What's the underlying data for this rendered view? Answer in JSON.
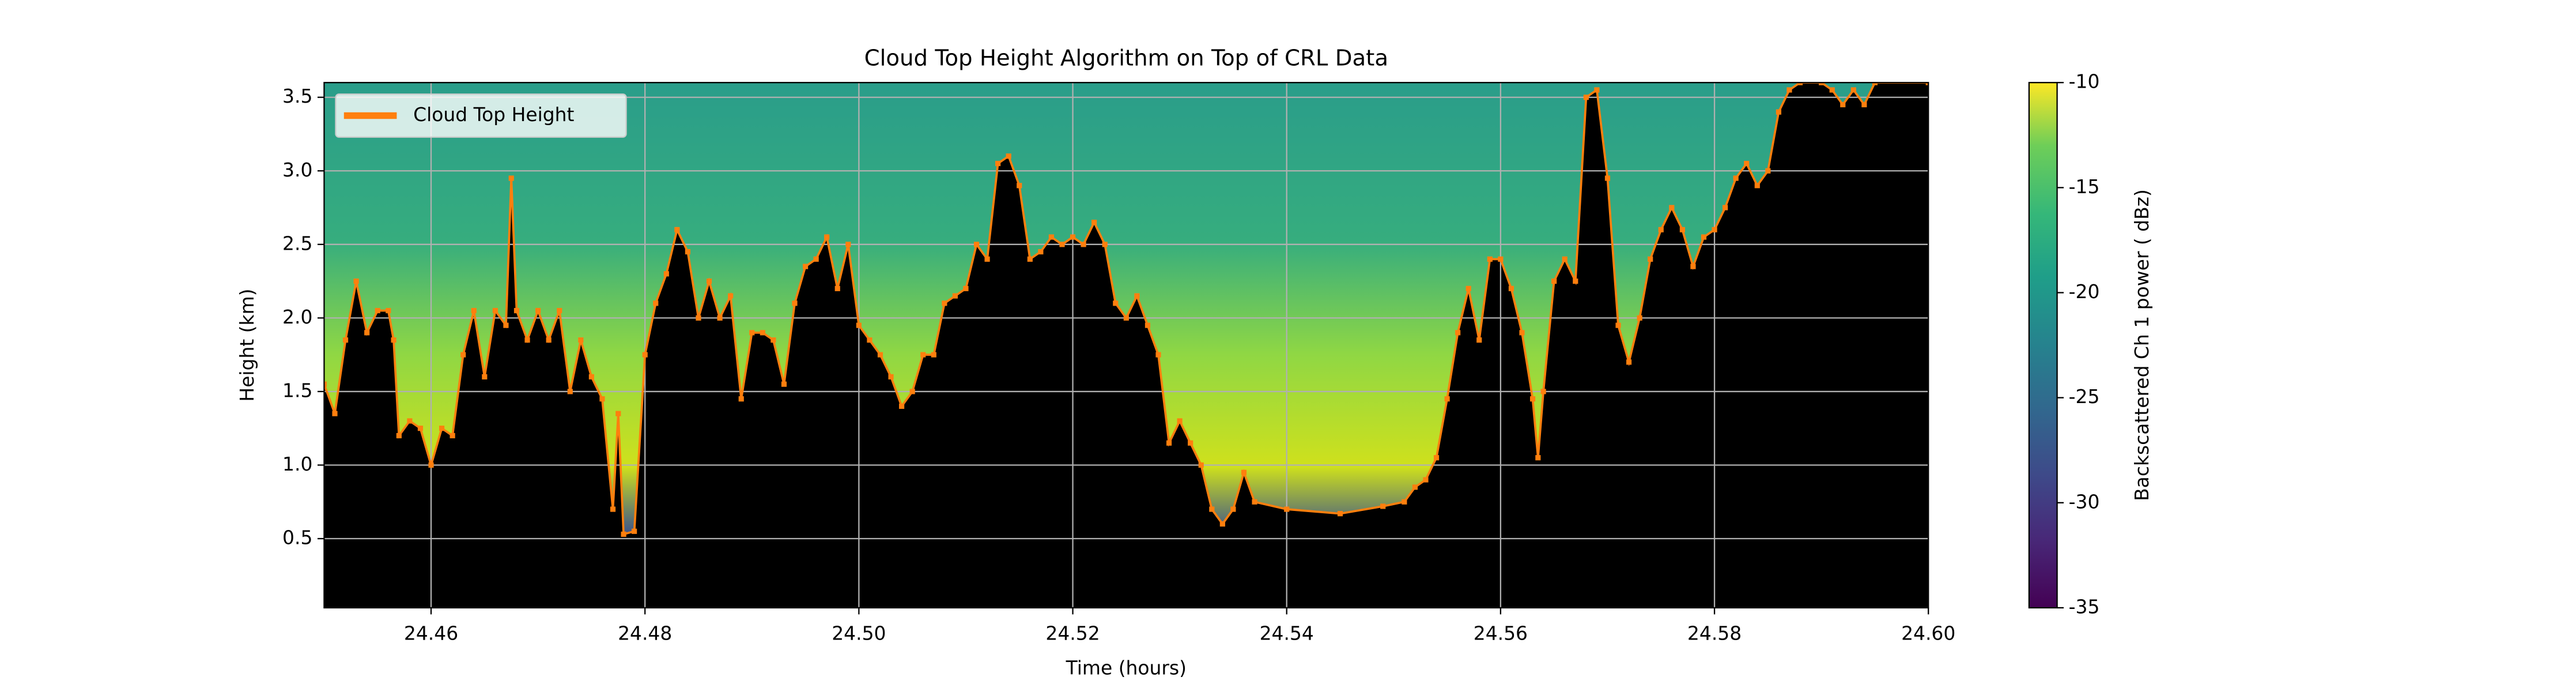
{
  "chart_data": {
    "type": "line",
    "title": "Cloud Top Height Algorithm on Top of CRL Data",
    "xlabel": "Time (hours)",
    "ylabel": "Height (km)",
    "x": [
      24.45,
      24.451,
      24.452,
      24.453,
      24.454,
      24.455,
      24.456,
      24.4565,
      24.457,
      24.458,
      24.459,
      24.46,
      24.461,
      24.462,
      24.463,
      24.464,
      24.465,
      24.466,
      24.467,
      24.4675,
      24.468,
      24.469,
      24.47,
      24.471,
      24.472,
      24.473,
      24.474,
      24.475,
      24.476,
      24.477,
      24.4775,
      24.478,
      24.479,
      24.48,
      24.481,
      24.482,
      24.483,
      24.484,
      24.485,
      24.486,
      24.487,
      24.488,
      24.489,
      24.49,
      24.491,
      24.492,
      24.493,
      24.494,
      24.495,
      24.496,
      24.497,
      24.498,
      24.499,
      24.5,
      24.501,
      24.502,
      24.503,
      24.504,
      24.505,
      24.506,
      24.507,
      24.508,
      24.509,
      24.51,
      24.511,
      24.512,
      24.513,
      24.514,
      24.515,
      24.516,
      24.517,
      24.518,
      24.519,
      24.52,
      24.521,
      24.522,
      24.523,
      24.524,
      24.525,
      24.526,
      24.527,
      24.528,
      24.529,
      24.53,
      24.531,
      24.532,
      24.533,
      24.534,
      24.535,
      24.536,
      24.537,
      24.54,
      24.545,
      24.549,
      24.551,
      24.552,
      24.553,
      24.554,
      24.555,
      24.556,
      24.557,
      24.558,
      24.559,
      24.56,
      24.561,
      24.562,
      24.563,
      24.5635,
      24.564,
      24.565,
      24.566,
      24.567,
      24.568,
      24.569,
      24.57,
      24.571,
      24.572,
      24.573,
      24.574,
      24.575,
      24.576,
      24.577,
      24.578,
      24.579,
      24.58,
      24.581,
      24.582,
      24.583,
      24.584,
      24.585,
      24.586,
      24.587,
      24.588,
      24.59,
      24.591,
      24.592,
      24.593,
      24.594,
      24.595,
      24.6
    ],
    "series": [
      {
        "name": "Cloud Top Height",
        "color": "#ff7f0e",
        "values": [
          1.55,
          1.35,
          1.85,
          2.25,
          1.9,
          2.05,
          2.05,
          1.85,
          1.2,
          1.3,
          1.25,
          1.0,
          1.25,
          1.2,
          1.75,
          2.05,
          1.6,
          2.05,
          1.95,
          2.95,
          2.05,
          1.85,
          2.05,
          1.85,
          2.05,
          1.5,
          1.85,
          1.6,
          1.45,
          0.7,
          1.35,
          0.53,
          0.55,
          1.75,
          2.1,
          2.3,
          2.6,
          2.45,
          2.0,
          2.25,
          2.0,
          2.15,
          1.45,
          1.9,
          1.9,
          1.85,
          1.55,
          2.1,
          2.35,
          2.4,
          2.55,
          2.2,
          2.5,
          1.95,
          1.85,
          1.75,
          1.6,
          1.4,
          1.5,
          1.75,
          1.75,
          2.1,
          2.15,
          2.2,
          2.5,
          2.4,
          3.05,
          3.1,
          2.9,
          2.4,
          2.45,
          2.55,
          2.5,
          2.55,
          2.5,
          2.65,
          2.5,
          2.1,
          2.0,
          2.15,
          1.95,
          1.75,
          1.15,
          1.3,
          1.15,
          1.0,
          0.7,
          0.6,
          0.7,
          0.95,
          0.75,
          0.7,
          0.67,
          0.72,
          0.75,
          0.85,
          0.9,
          1.05,
          1.45,
          1.9,
          2.2,
          1.85,
          2.4,
          2.4,
          2.2,
          1.9,
          1.45,
          1.05,
          1.5,
          2.25,
          2.4,
          2.25,
          3.5,
          3.55,
          2.95,
          1.95,
          1.7,
          2.0,
          2.4,
          2.6,
          2.75,
          2.6,
          2.35,
          2.55,
          2.6,
          2.75,
          2.95,
          3.05,
          2.9,
          3.0,
          3.4,
          3.55,
          3.6,
          3.6,
          3.55,
          3.45,
          3.55,
          3.45,
          3.6,
          3.6
        ]
      }
    ],
    "xlim": [
      24.45,
      24.6
    ],
    "ylim": [
      0.03,
      3.6
    ],
    "xticks": [
      24.46,
      24.48,
      {
        "value": 24.5,
        "label": "24.50"
      },
      24.52,
      24.54,
      24.56,
      24.58,
      {
        "value": 24.6,
        "label": "24.60"
      }
    ],
    "yticks": [
      0.5,
      {
        "value": 1,
        "label": "1.0"
      },
      1.5,
      {
        "value": 2,
        "label": "2.0"
      },
      2.5,
      {
        "value": 3,
        "label": "3.0"
      },
      3.5
    ],
    "grid": true,
    "legend": "upper left",
    "colorbar": {
      "label": "Backscattered Ch 1 power ( dBz)",
      "colormap": "viridis",
      "lim": [
        -35,
        -10
      ],
      "ticks": [
        -35,
        -30,
        -25,
        -20,
        -15,
        -10
      ]
    }
  }
}
